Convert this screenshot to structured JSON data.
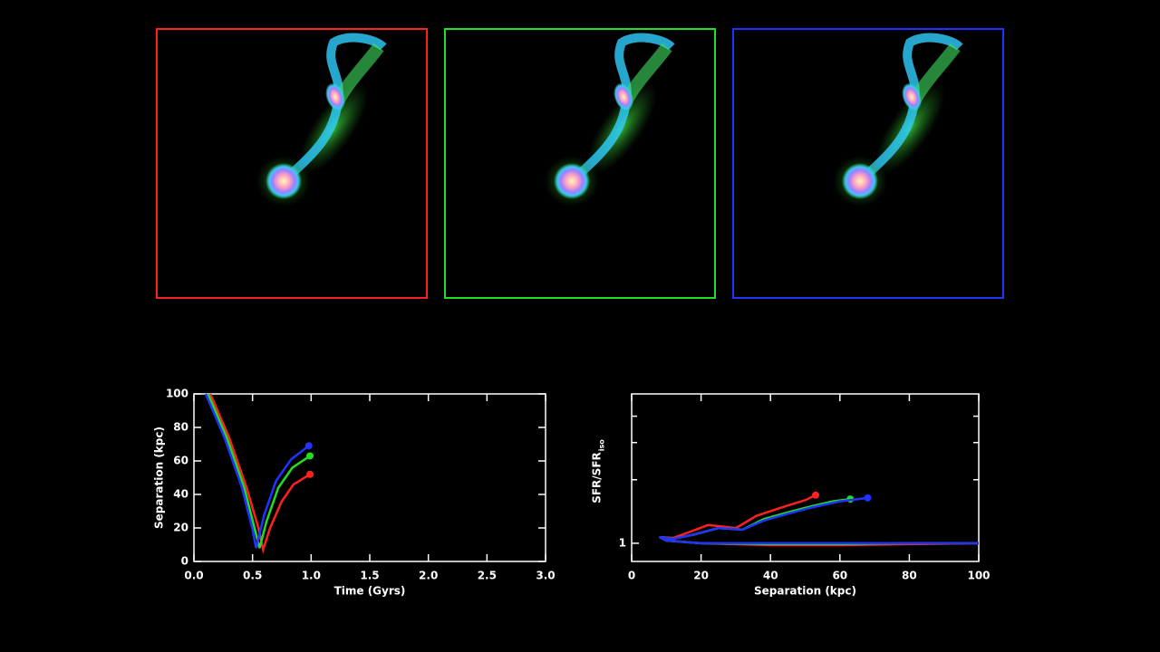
{
  "chart_data": [
    {
      "type": "line",
      "xlabel": "Time (Gyrs)",
      "ylabel": "Separation (kpc)",
      "xlim": [
        0,
        3
      ],
      "xticks": [
        {
          "value": 0,
          "label": "0.0"
        },
        0.5,
        {
          "value": 1,
          "label": "1.0"
        },
        1.5,
        {
          "value": 2,
          "label": "2.0"
        },
        2.5,
        {
          "value": 3,
          "label": "3.0"
        }
      ],
      "ylim": [
        0,
        100
      ],
      "yticks": [
        0,
        20,
        40,
        60,
        80,
        100
      ],
      "end_markers": true,
      "series": [
        {
          "color": "#ff2020",
          "x": [
            0.14,
            0.3,
            0.45,
            0.55,
            0.59,
            0.65,
            0.75,
            0.85,
            0.99
          ],
          "values": [
            100,
            74,
            44,
            20,
            7,
            20,
            36,
            46,
            52
          ]
        },
        {
          "color": "#22dd22",
          "x": [
            0.12,
            0.28,
            0.43,
            0.52,
            0.56,
            0.62,
            0.72,
            0.84,
            0.99
          ],
          "values": [
            100,
            74,
            44,
            19,
            8,
            24,
            44,
            56,
            63
          ]
        },
        {
          "color": "#2233ff",
          "x": [
            0.1,
            0.26,
            0.41,
            0.5,
            0.53,
            0.6,
            0.7,
            0.83,
            0.98
          ],
          "values": [
            100,
            74,
            44,
            19,
            8,
            28,
            48,
            61,
            69
          ]
        }
      ]
    },
    {
      "type": "line",
      "xlabel": "Separation (kpc)",
      "ylabel": "SFR/SFR",
      "ylabel_sub": "iso",
      "xlim": [
        0,
        100
      ],
      "xticks": [
        0,
        20,
        40,
        60,
        80,
        100
      ],
      "ylim": [
        0.82,
        5.1
      ],
      "log_y": true,
      "yticks": [
        1
      ],
      "yminorticks": [
        2,
        3,
        4
      ],
      "end_markers": true,
      "series": [
        {
          "color": "#ff2020",
          "x": [
            100,
            80,
            60,
            40,
            20,
            10,
            8,
            12,
            16,
            22,
            30,
            36,
            40,
            45,
            50,
            53
          ],
          "values": [
            1.0,
            0.99,
            0.98,
            0.98,
            1.0,
            1.03,
            1.07,
            1.06,
            1.12,
            1.22,
            1.18,
            1.35,
            1.42,
            1.51,
            1.6,
            1.69
          ]
        },
        {
          "color": "#22dd22",
          "x": [
            100,
            80,
            60,
            40,
            20,
            10,
            8,
            12,
            18,
            25,
            32,
            38,
            45,
            52,
            58,
            63
          ],
          "values": [
            1.0,
            1.0,
            0.99,
            0.99,
            1.0,
            1.03,
            1.07,
            1.05,
            1.1,
            1.18,
            1.16,
            1.3,
            1.4,
            1.5,
            1.58,
            1.62
          ]
        },
        {
          "color": "#2233ff",
          "x": [
            100,
            80,
            60,
            40,
            20,
            10,
            8,
            12,
            18,
            25,
            32,
            38,
            45,
            52,
            60,
            68
          ],
          "values": [
            1.0,
            1.0,
            1.0,
            1.0,
            1.0,
            1.03,
            1.07,
            1.05,
            1.1,
            1.18,
            1.16,
            1.28,
            1.38,
            1.48,
            1.58,
            1.64
          ]
        }
      ]
    }
  ]
}
